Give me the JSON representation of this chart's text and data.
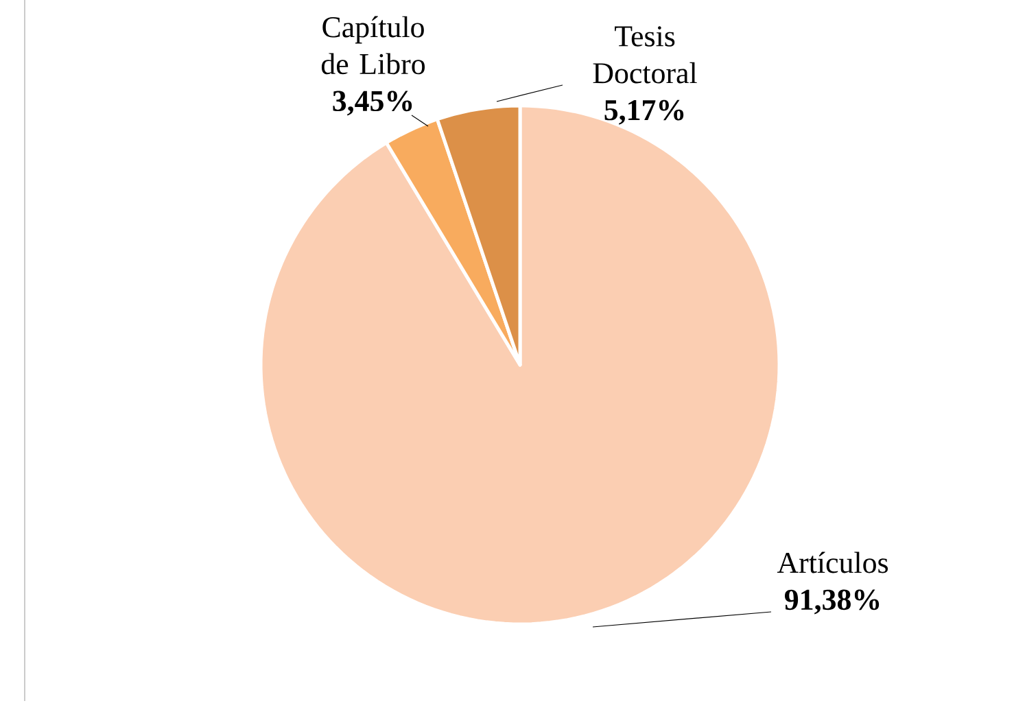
{
  "chart_data": {
    "type": "pie",
    "categories": [
      "Artículos",
      "Capítulo de Libro",
      "Tesis Doctoral"
    ],
    "values": [
      91.38,
      3.45,
      5.17
    ],
    "value_labels": [
      "91,38%",
      "3,45%",
      "5,17%"
    ],
    "colors": [
      "#fbceb2",
      "#f8ab5e",
      "#dc9048"
    ]
  }
}
